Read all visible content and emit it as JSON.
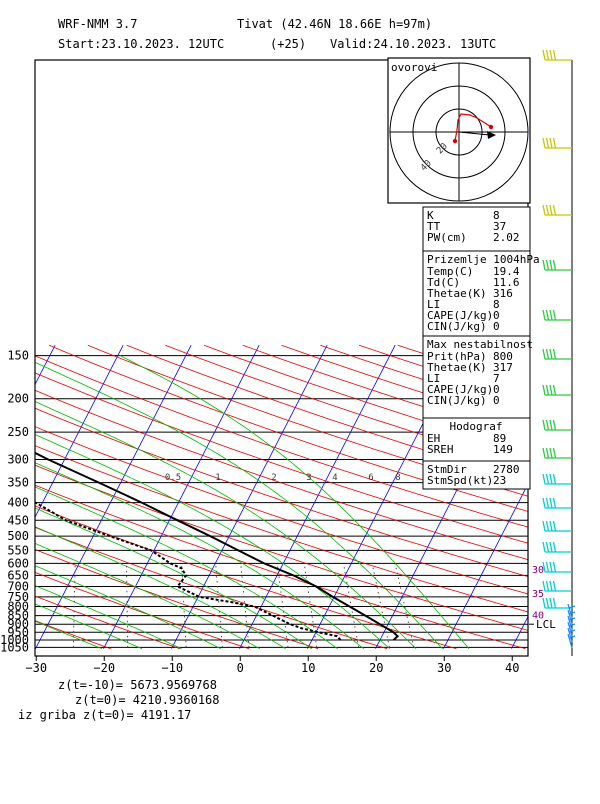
{
  "header": {
    "model": "WRF-NMM 3.7",
    "location": "Tivat (42.46N 18.66E  h=97m)",
    "start": "Start:23.10.2023.   12UTC",
    "lead": "(+25)",
    "valid": "Valid:24.10.2023.   13UTC"
  },
  "footer": {
    "l1": "z(t=-10)=  5673.9569768",
    "l2": "z(t=0)=   4210.9360168",
    "l3": "iz griba  z(t=0)= 4191.17"
  },
  "hodograph": {
    "title": "ovorovi",
    "speed_rings": [
      "20",
      "40"
    ]
  },
  "indices": {
    "box1": [
      [
        "K",
        "8"
      ],
      [
        "TT",
        "37"
      ],
      [
        "PW(cm)",
        "2.02"
      ]
    ],
    "surface_title": "Prizemlje 1004hPa",
    "box2": [
      [
        "Temp(C)",
        "19.4"
      ],
      [
        "Td(C)",
        "11.6"
      ],
      [
        "Thetae(K)",
        "316"
      ],
      [
        "LI",
        "8"
      ],
      [
        "CAPE(J/kg)",
        "0"
      ],
      [
        "CIN(J/kg)",
        "0"
      ]
    ],
    "maxinst_title": "Max nestabilnost",
    "box3": [
      [
        "Prit(hPa)",
        "800"
      ],
      [
        "Thetae(K)",
        "317"
      ],
      [
        "LI",
        "7"
      ],
      [
        "CAPE(J/kg)",
        "0"
      ],
      [
        "CIN(J/kg)",
        "0"
      ]
    ],
    "hodo_title": "Hodograf",
    "box4": [
      [
        "EH",
        "89"
      ],
      [
        "SREH",
        "149"
      ]
    ],
    "box5": [
      [
        "StmDir",
        "2780"
      ],
      [
        "StmSpd(kt)",
        "23"
      ]
    ]
  },
  "chart_data": {
    "type": "skew-t",
    "xlabel": "",
    "ylabel": "",
    "xlim": [
      -30,
      40
    ],
    "ylim": [
      1050,
      150
    ],
    "y_scale": "log",
    "x_ticks": [
      -30,
      -20,
      -10,
      0,
      10,
      20,
      30,
      40
    ],
    "x_tick_labels": [
      "−30",
      "−20",
      "−10",
      "0",
      "10",
      "20",
      "30",
      "40"
    ],
    "pressure_ticks": [
      150,
      200,
      250,
      300,
      350,
      400,
      450,
      500,
      550,
      600,
      650,
      700,
      750,
      800,
      850,
      900,
      950,
      1000,
      1050
    ],
    "mixing_ratio_labels": [
      "0.5",
      "1",
      "2",
      "3",
      "4",
      "6",
      "8"
    ],
    "wind_speed_labels": [
      {
        "p": 640,
        "label": "30"
      },
      {
        "p": 750,
        "label": "35"
      },
      {
        "p": 865,
        "label": "40"
      }
    ],
    "lcl_label": "LCL",
    "lcl_p": 900,
    "temperature": [
      {
        "p": 1000,
        "t": 22.0
      },
      {
        "p": 975,
        "t": 22.3
      },
      {
        "p": 950,
        "t": 21.4
      },
      {
        "p": 900,
        "t": 18.8
      },
      {
        "p": 850,
        "t": 16.0
      },
      {
        "p": 800,
        "t": 13.0
      },
      {
        "p": 750,
        "t": 9.8
      },
      {
        "p": 700,
        "t": 6.6
      },
      {
        "p": 650,
        "t": 2.4
      },
      {
        "p": 600,
        "t": -2.8
      },
      {
        "p": 550,
        "t": -7.6
      },
      {
        "p": 500,
        "t": -12.8
      },
      {
        "p": 450,
        "t": -18.8
      },
      {
        "p": 400,
        "t": -25.4
      },
      {
        "p": 350,
        "t": -33.2
      },
      {
        "p": 300,
        "t": -42.4
      },
      {
        "p": 250,
        "t": -52.4
      },
      {
        "p": 200,
        "t": -60.0
      },
      {
        "p": 150,
        "t": -61.0
      }
    ],
    "dewpoint": [
      {
        "p": 1000,
        "t": 14.2
      },
      {
        "p": 975,
        "t": 13.4
      },
      {
        "p": 950,
        "t": 10.4
      },
      {
        "p": 925,
        "t": 7.6
      },
      {
        "p": 900,
        "t": 5.6
      },
      {
        "p": 850,
        "t": 2.4
      },
      {
        "p": 800,
        "t": -1.0
      },
      {
        "p": 775,
        "t": -5.0
      },
      {
        "p": 750,
        "t": -9.8
      },
      {
        "p": 700,
        "t": -13.8
      },
      {
        "p": 650,
        "t": -13.4
      },
      {
        "p": 620,
        "t": -14.6
      },
      {
        "p": 600,
        "t": -16.6
      },
      {
        "p": 550,
        "t": -20.4
      },
      {
        "p": 500,
        "t": -27.6
      },
      {
        "p": 450,
        "t": -35.2
      },
      {
        "p": 400,
        "t": -41.0
      },
      {
        "p": 350,
        "t": -48.8
      },
      {
        "p": 300,
        "t": -58.4
      },
      {
        "p": 250,
        "t": -74.0
      },
      {
        "p": 200,
        "t": -93.0
      },
      {
        "p": 150,
        "t": -91.0
      }
    ]
  },
  "colors": {
    "isotherm": "#0000ff",
    "dry_adiabat": "#e00000",
    "moist_adiabat": "#00bb00",
    "mixing_ratio": "#404040",
    "temperature": "#000000",
    "dewpoint": "#000000",
    "barbs_high": "#c8c800",
    "barbs_mid": "#2ecc40",
    "barbs_low": "#00d0d0"
  }
}
